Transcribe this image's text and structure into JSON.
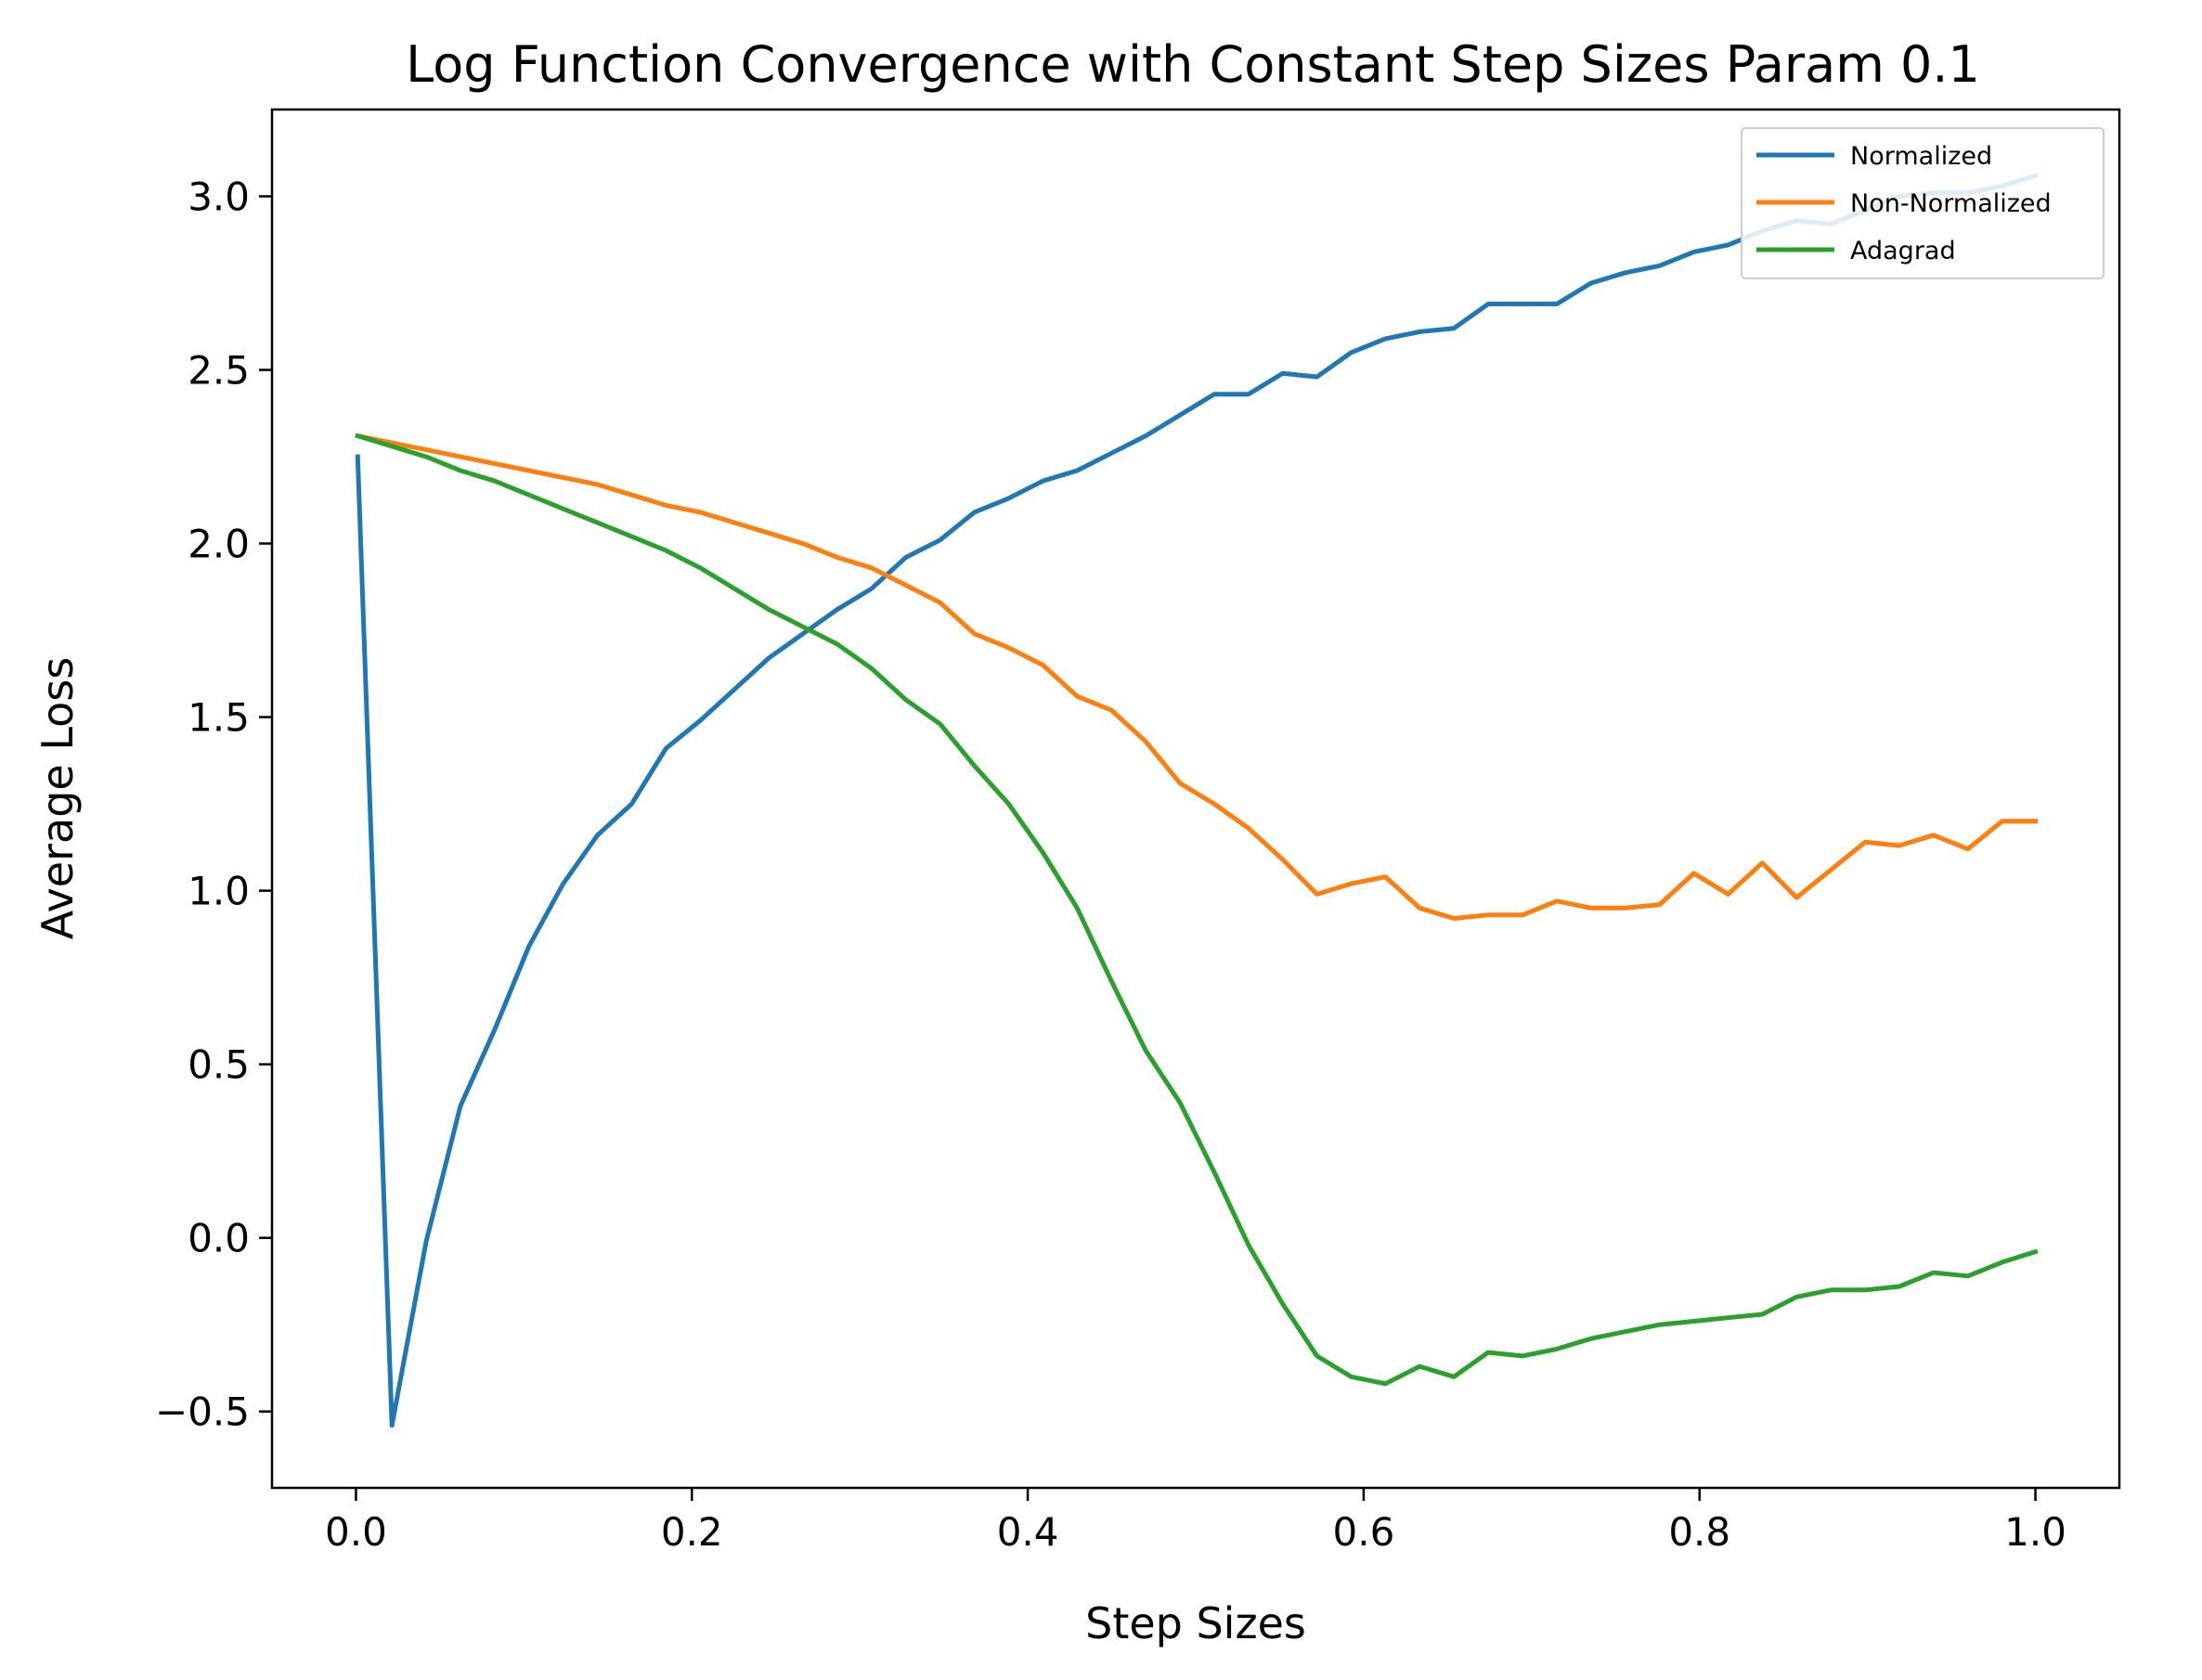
{
  "chart_data": {
    "type": "line",
    "title": "Log Function Convergence with Constant Step Sizes Param 0.1",
    "xlabel": "Step Sizes",
    "ylabel": "Average Loss",
    "xlim": [
      -0.05,
      1.05
    ],
    "ylim": [
      -0.72,
      3.25
    ],
    "x_ticks": [
      0.0,
      0.2,
      0.4,
      0.6,
      0.8,
      1.0
    ],
    "x_tick_labels": [
      "0.0",
      "0.2",
      "0.4",
      "0.6",
      "0.8",
      "1.0"
    ],
    "y_ticks": [
      -0.5,
      0.0,
      0.5,
      1.0,
      1.5,
      2.0,
      2.5,
      3.0
    ],
    "y_tick_labels": [
      "−0.5",
      "0.0",
      "0.5",
      "1.0",
      "1.5",
      "2.0",
      "2.5",
      "3.0"
    ],
    "grid": false,
    "legend_position": "top-right",
    "x": [
      0.001,
      0.0214,
      0.0418,
      0.0622,
      0.0826,
      0.103,
      0.1234,
      0.1438,
      0.1642,
      0.1846,
      0.205,
      0.2254,
      0.2458,
      0.2662,
      0.2866,
      0.307,
      0.3274,
      0.3478,
      0.3682,
      0.3886,
      0.409,
      0.4294,
      0.4498,
      0.4702,
      0.4906,
      0.511,
      0.5314,
      0.5518,
      0.5722,
      0.5926,
      0.613,
      0.6334,
      0.6538,
      0.6742,
      0.6946,
      0.715,
      0.7354,
      0.7558,
      0.7762,
      0.7966,
      0.817,
      0.8374,
      0.8578,
      0.8782,
      0.8986,
      0.919,
      0.9394,
      0.9598,
      0.9802,
      1.0
    ],
    "series": [
      {
        "name": "Normalized",
        "color": "#1f77b4",
        "values": [
          2.25,
          -0.54,
          -0.01,
          0.38,
          0.6,
          0.84,
          1.02,
          1.16,
          1.25,
          1.41,
          1.49,
          1.58,
          1.67,
          1.74,
          1.81,
          1.87,
          1.96,
          2.01,
          2.09,
          2.13,
          2.18,
          2.21,
          2.26,
          2.31,
          2.37,
          2.43,
          2.43,
          2.49,
          2.48,
          2.55,
          2.59,
          2.61,
          2.62,
          2.69,
          2.69,
          2.69,
          2.75,
          2.78,
          2.8,
          2.84,
          2.86,
          2.9,
          2.93,
          2.92,
          2.96,
          3.0,
          3.01,
          3.01,
          3.03,
          3.06
        ]
      },
      {
        "name": "Non-Normalized",
        "color": "#ff7f0e",
        "values": [
          2.31,
          2.29,
          2.27,
          2.25,
          2.23,
          2.21,
          2.19,
          2.17,
          2.14,
          2.11,
          2.09,
          2.06,
          2.03,
          2.0,
          1.96,
          1.93,
          1.88,
          1.83,
          1.74,
          1.7,
          1.65,
          1.56,
          1.52,
          1.43,
          1.31,
          1.25,
          1.18,
          1.09,
          0.99,
          1.02,
          1.04,
          0.95,
          0.92,
          0.93,
          0.93,
          0.97,
          0.95,
          0.95,
          0.96,
          1.05,
          0.99,
          1.08,
          0.98,
          1.06,
          1.14,
          1.13,
          1.16,
          1.12,
          1.2,
          1.2
        ]
      },
      {
        "name": "Adagrad",
        "color": "#2ca02c",
        "values": [
          2.31,
          2.28,
          2.25,
          2.21,
          2.18,
          2.14,
          2.1,
          2.06,
          2.02,
          1.98,
          1.93,
          1.87,
          1.81,
          1.76,
          1.71,
          1.64,
          1.55,
          1.48,
          1.36,
          1.25,
          1.11,
          0.95,
          0.74,
          0.54,
          0.39,
          0.19,
          -0.02,
          -0.19,
          -0.34,
          -0.4,
          -0.42,
          -0.37,
          -0.4,
          -0.33,
          -0.34,
          -0.32,
          -0.29,
          -0.27,
          -0.25,
          -0.24,
          -0.23,
          -0.22,
          -0.17,
          -0.15,
          -0.15,
          -0.14,
          -0.1,
          -0.11,
          -0.07,
          -0.04
        ]
      }
    ]
  }
}
